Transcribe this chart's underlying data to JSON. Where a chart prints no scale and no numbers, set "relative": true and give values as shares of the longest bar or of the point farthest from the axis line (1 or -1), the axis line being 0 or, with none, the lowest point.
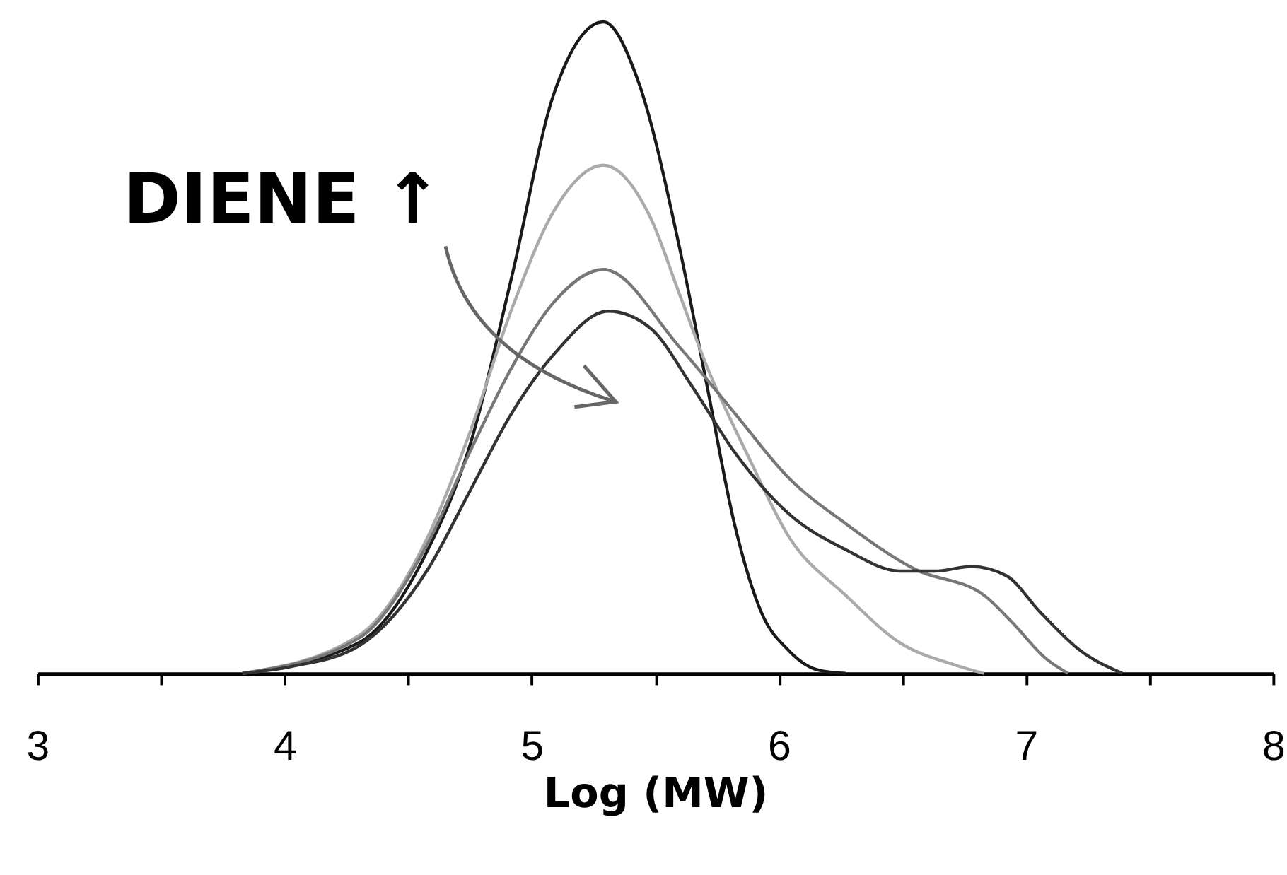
{
  "chart_data": {
    "type": "line",
    "relative": true,
    "xlabel": "Log (MW)",
    "annotations": [
      "DIENE ↑"
    ],
    "xlim": [
      3,
      8
    ],
    "xticks": [
      3,
      {
        "value": 3.5,
        "label": null
      },
      4,
      {
        "value": 4.5,
        "label": null
      },
      5,
      {
        "value": 5.5,
        "label": null
      },
      6,
      {
        "value": 6.5,
        "label": null
      },
      7,
      {
        "value": 7.5,
        "label": null
      },
      8
    ],
    "tick_labels": "x",
    "grid": false,
    "line_style": "solid",
    "marker": "none",
    "series": [
      {
        "color": "#1a1a1a",
        "x": [
          3.83,
          4.3,
          4.58,
          4.75,
          4.92,
          5.09,
          5.29,
          5.43,
          5.6,
          5.71,
          5.82,
          5.93,
          6.04,
          6.16,
          6.27
        ],
        "values": [
          0,
          0.047,
          0.19,
          0.35,
          0.61,
          0.89,
          1.0,
          0.91,
          0.65,
          0.44,
          0.23,
          0.093,
          0.035,
          0.005,
          0
        ]
      },
      {
        "color": "#aaaaaa",
        "x": [
          3.83,
          4.3,
          4.58,
          4.75,
          4.92,
          5.09,
          5.29,
          5.48,
          5.6,
          5.71,
          5.88,
          6.04,
          6.27,
          6.49,
          6.72,
          6.83
        ],
        "values": [
          0,
          0.058,
          0.21,
          0.37,
          0.56,
          0.71,
          0.78,
          0.7,
          0.58,
          0.47,
          0.33,
          0.21,
          0.12,
          0.047,
          0.012,
          0
        ]
      },
      {
        "color": "#777777",
        "x": [
          3.83,
          4.3,
          4.58,
          4.75,
          4.92,
          5.09,
          5.29,
          5.6,
          5.82,
          6.04,
          6.27,
          6.55,
          6.83,
          6.94,
          7.08,
          7.17
        ],
        "values": [
          0,
          0.054,
          0.2,
          0.34,
          0.47,
          0.57,
          0.62,
          0.5,
          0.4,
          0.3,
          0.23,
          0.16,
          0.12,
          0.08,
          0.023,
          0
        ]
      },
      {
        "color": "#333333",
        "x": [
          3.83,
          4.02,
          4.3,
          4.58,
          4.75,
          4.92,
          5.09,
          5.31,
          5.48,
          5.65,
          5.82,
          6.04,
          6.27,
          6.49,
          6.63,
          6.78,
          6.92,
          7.06,
          7.22,
          7.39
        ],
        "values": [
          0,
          0.01,
          0.042,
          0.16,
          0.28,
          0.4,
          0.49,
          0.556,
          0.53,
          0.44,
          0.34,
          0.245,
          0.19,
          0.157,
          0.157,
          0.164,
          0.15,
          0.093,
          0.035,
          0
        ]
      }
    ]
  }
}
